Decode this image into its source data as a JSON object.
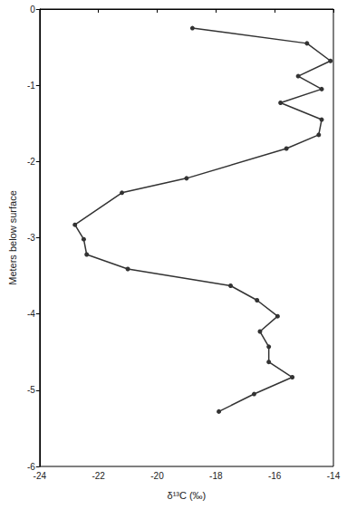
{
  "chart_data": {
    "type": "line",
    "xlabel": "δ¹³C (‰)",
    "ylabel": "Meters below surface",
    "x": [
      -18.8,
      -14.9,
      -14.1,
      -15.2,
      -14.4,
      -15.8,
      -14.4,
      -14.5,
      -15.6,
      -19.0,
      -21.2,
      -22.8,
      -22.5,
      -22.4,
      -21.0,
      -17.5,
      -16.6,
      -15.9,
      -16.5,
      -16.2,
      -16.2,
      -15.4,
      -16.7,
      -17.9
    ],
    "values": [
      -0.25,
      -0.45,
      -0.68,
      -0.88,
      -1.05,
      -1.23,
      -1.45,
      -1.65,
      -1.83,
      -2.22,
      -2.41,
      -2.83,
      -3.02,
      -3.22,
      -3.41,
      -3.63,
      -3.82,
      -4.03,
      -4.23,
      -4.43,
      -4.63,
      -4.83,
      -5.05,
      -5.28
    ],
    "color": "#333333",
    "marker": "circle",
    "xlim": [
      -24,
      -14
    ],
    "xticks": [
      -24,
      -22,
      -20,
      -18,
      -16,
      -14
    ],
    "ylim": [
      -6,
      0
    ],
    "yticks": [
      -6,
      -5,
      -4,
      -3,
      -2,
      -1,
      0
    ],
    "grid": false
  }
}
